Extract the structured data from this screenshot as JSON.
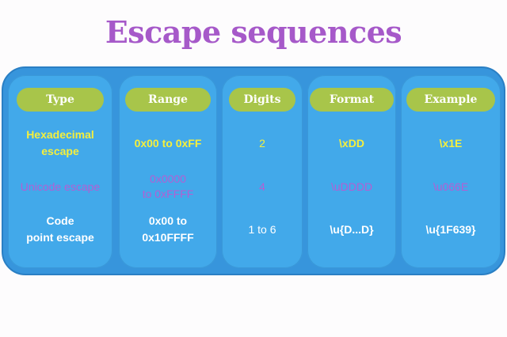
{
  "title": "Escape sequences",
  "columns": [
    {
      "header": "Type",
      "cells": [
        "Hexadecimal\nescape",
        "Unicode escape",
        "Code\npoint escape"
      ]
    },
    {
      "header": "Range",
      "cells": [
        "0x00 to 0xFF",
        "0x0000\nto 0xFFFF",
        "0x00 to\n0x10FFFF"
      ]
    },
    {
      "header": "Digits",
      "cells": [
        "2",
        "4",
        "1 to 6"
      ]
    },
    {
      "header": "Format",
      "cells": [
        "\\xDD",
        "\\uDDDD",
        "\\u{D...D}"
      ]
    },
    {
      "header": "Example",
      "cells": [
        "\\x1E",
        "\\u066E",
        "\\u{1F639}"
      ]
    }
  ],
  "colors": {
    "title": "#a659c9",
    "panel": "#3795dc",
    "column": "#42a9ea",
    "header_pill": "#a8c54a",
    "row1_text": "#f5ef3c",
    "row2_text": "#b35fd3",
    "row3_text": "#ffffff"
  }
}
